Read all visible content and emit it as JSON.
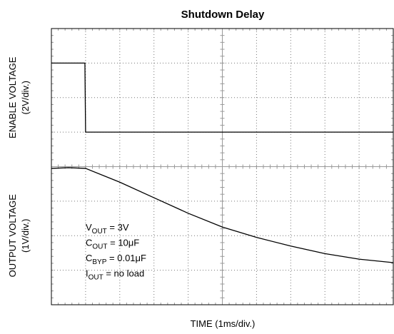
{
  "chart_data": {
    "type": "line",
    "title": "Shutdown Delay",
    "xlabel": "TIME (1ms/div.)",
    "ylabels": [
      [
        "ENABLE VOLTAGE",
        "(2V/div.)"
      ],
      [
        "OUTPUT VOLTAGE",
        "(1V/div.)"
      ]
    ],
    "xlim": [
      0,
      10
    ],
    "ylim": [
      0,
      8
    ],
    "xticks": [
      0,
      1,
      2,
      3,
      4,
      5,
      6,
      7,
      8,
      9,
      10
    ],
    "yticks": [
      0,
      1,
      2,
      3,
      4,
      5,
      6,
      7,
      8
    ],
    "grid": true,
    "series": [
      {
        "name": "ENABLE VOLTAGE",
        "color": "#000000",
        "x": [
          0,
          0.98,
          1.0,
          10
        ],
        "values": [
          7.0,
          7.0,
          5.0,
          5.0
        ]
      },
      {
        "name": "OUTPUT VOLTAGE",
        "color": "#000000",
        "x": [
          0,
          0.5,
          1,
          2,
          3,
          4,
          5,
          6,
          7,
          8,
          9,
          10
        ],
        "values": [
          3.95,
          3.97,
          3.95,
          3.55,
          3.1,
          2.65,
          2.25,
          1.95,
          1.7,
          1.48,
          1.32,
          1.22
        ]
      }
    ],
    "annotations": [
      {
        "main": "V",
        "sub": "OUT",
        "rest": " = 3V"
      },
      {
        "main": "C",
        "sub": "OUT",
        "rest": " = 10μF"
      },
      {
        "main": "C",
        "sub": "BYP",
        "rest": " = 0.01μF"
      },
      {
        "main": "I",
        "sub": "OUT",
        "rest": " = no load"
      }
    ]
  }
}
